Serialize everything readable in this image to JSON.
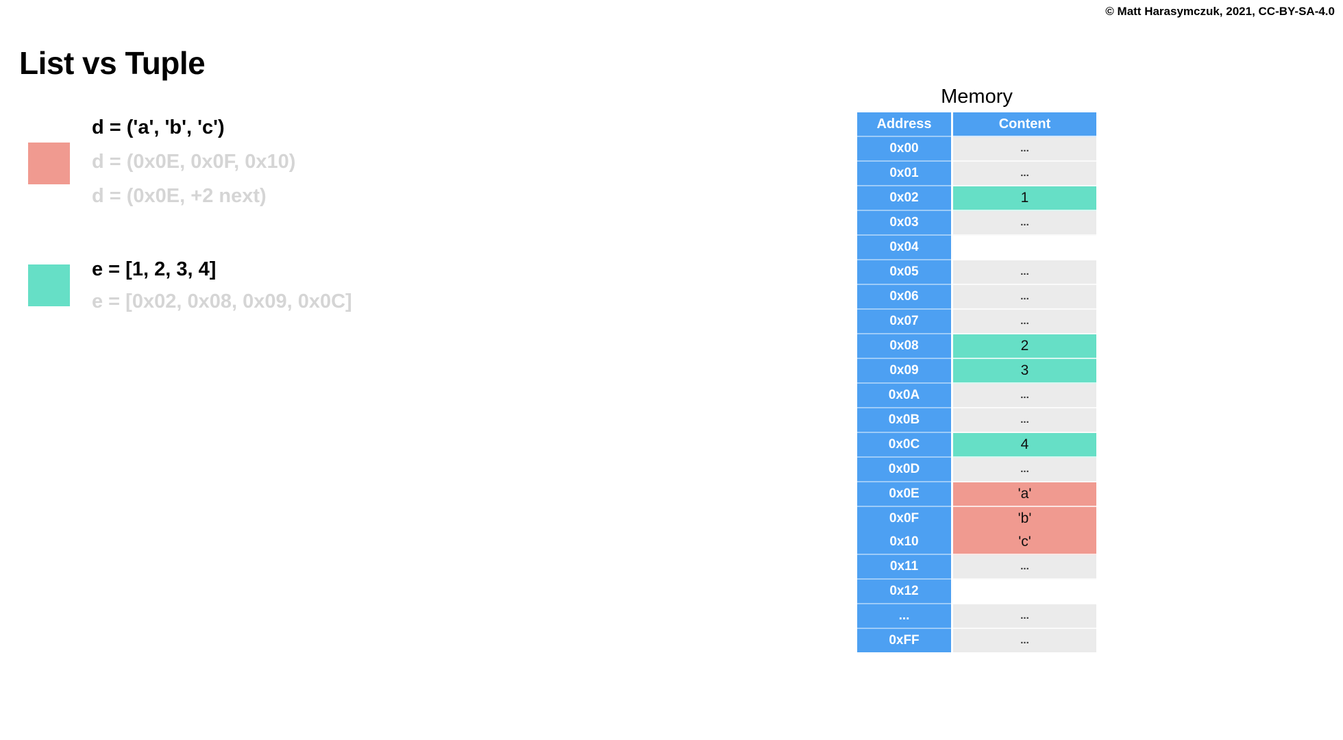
{
  "page": {
    "title": "List vs Tuple",
    "copyright": "© Matt Harasymczuk, 2021, CC-BY-SA-4.0"
  },
  "colors": {
    "header_blue": "#4DA0F2",
    "list_teal": "#66DFC6",
    "tuple_salmon": "#F09A90",
    "cell_gray": "#EBEBEB",
    "dots_text": "#333333",
    "legend_gray_text": "#D5D5D5"
  },
  "legend": {
    "tuple": {
      "swatch_color": "#F09A90",
      "lines": [
        {
          "text": "d = ('a', 'b', 'c')",
          "style": "code"
        },
        {
          "text": "d = (0x0E, 0x0F, 0x10)",
          "style": "memory"
        },
        {
          "text": "d = (0x0E, +2 next)",
          "style": "memory"
        }
      ]
    },
    "list": {
      "swatch_color": "#66DFC6",
      "lines": [
        {
          "text": "e = [1, 2, 3, 4]",
          "style": "code"
        },
        {
          "text": "e = [0x02, 0x08, 0x09, 0x0C]",
          "style": "memory"
        }
      ]
    }
  },
  "memory_table": {
    "title": "Memory",
    "columns": [
      "Address",
      "Content"
    ],
    "rows": [
      {
        "address": "0x00",
        "content": "...",
        "highlight": "none"
      },
      {
        "address": "0x01",
        "content": "...",
        "highlight": "none"
      },
      {
        "address": "0x02",
        "content": "1",
        "highlight": "list"
      },
      {
        "address": "0x03",
        "content": "...",
        "highlight": "none"
      },
      {
        "address": "0x04",
        "content": "",
        "highlight": "empty"
      },
      {
        "address": "0x05",
        "content": "...",
        "highlight": "none"
      },
      {
        "address": "0x06",
        "content": "...",
        "highlight": "none"
      },
      {
        "address": "0x07",
        "content": "...",
        "highlight": "none"
      },
      {
        "address": "0x08",
        "content": "2",
        "highlight": "list"
      },
      {
        "address": "0x09",
        "content": "3",
        "highlight": "list"
      },
      {
        "address": "0x0A",
        "content": "...",
        "highlight": "none"
      },
      {
        "address": "0x0B",
        "content": "...",
        "highlight": "none"
      },
      {
        "address": "0x0C",
        "content": "4",
        "highlight": "list"
      },
      {
        "address": "0x0D",
        "content": "...",
        "highlight": "none"
      },
      {
        "address": "0x0E",
        "content": "'a'",
        "highlight": "tuple"
      },
      {
        "address": "0x0F",
        "content": "'b'",
        "highlight": "tuple",
        "merged_with_next": true
      },
      {
        "address": "0x10",
        "content": "'c'",
        "highlight": "tuple"
      },
      {
        "address": "0x11",
        "content": "...",
        "highlight": "none"
      },
      {
        "address": "0x12",
        "content": "",
        "highlight": "empty"
      },
      {
        "address": "...",
        "content": "...",
        "highlight": "none"
      },
      {
        "address": "0xFF",
        "content": "...",
        "highlight": "none"
      }
    ]
  }
}
